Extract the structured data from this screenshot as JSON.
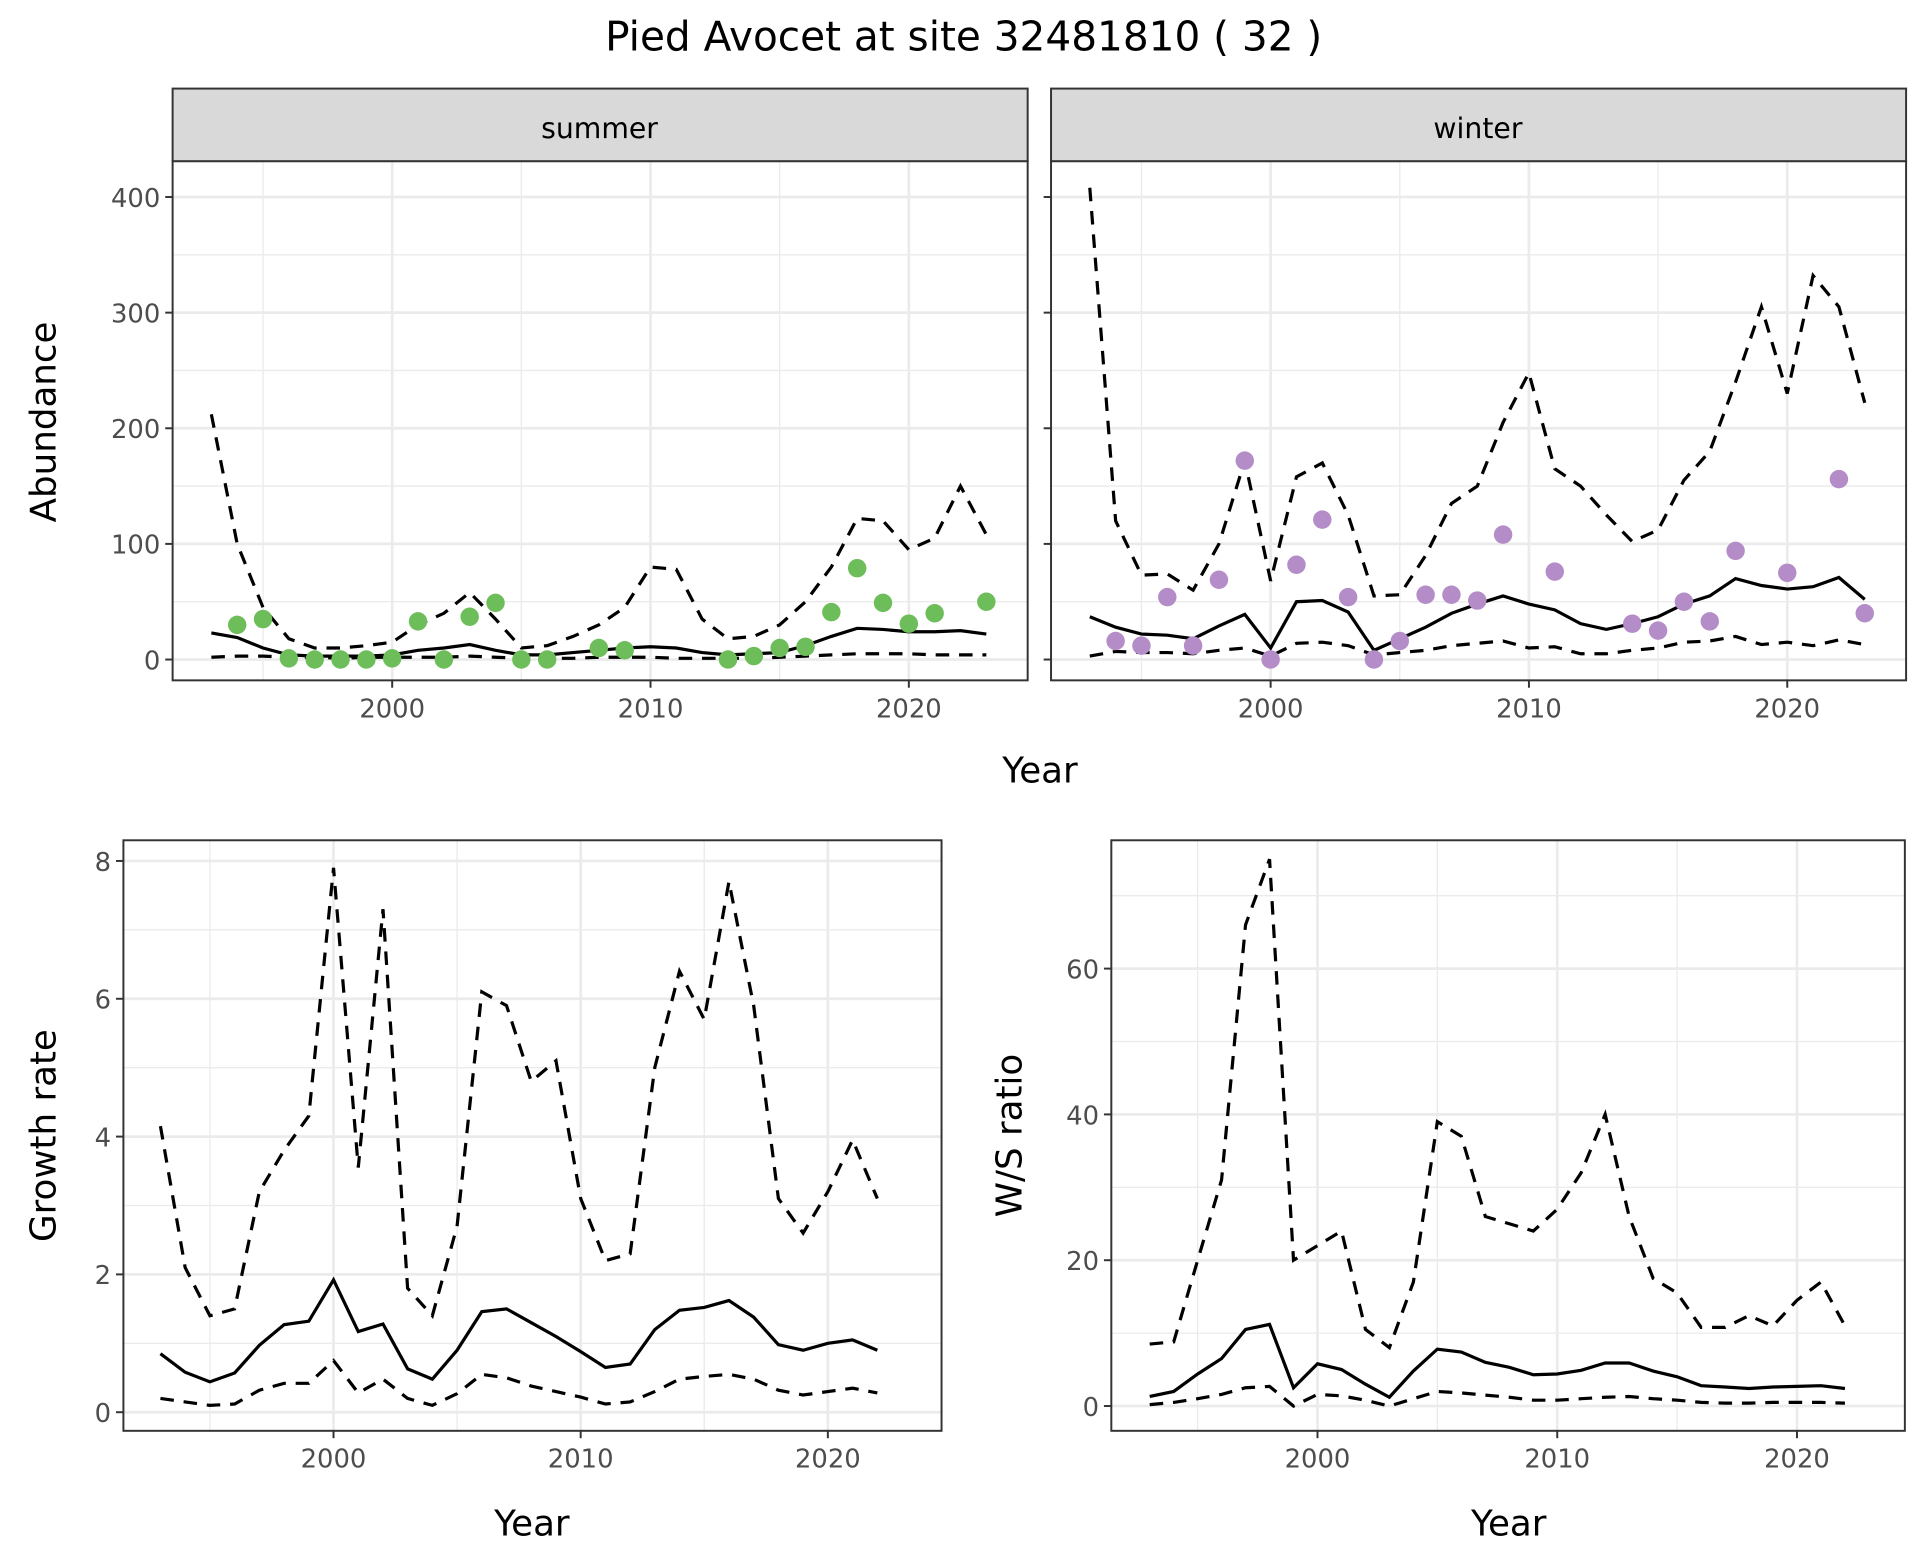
{
  "title": "Pied Avocet at site 32481810 ( 32 )",
  "colors": {
    "summer_points": "#6DBE5A",
    "winter_points": "#B48CC8",
    "lines": "#000000",
    "strip_fill": "#D9D9D9",
    "grid": "#EBEBEB"
  },
  "chart_data": [
    {
      "type": "line+scatter",
      "facet": "summer",
      "xlabel": "Year",
      "ylabel": "Abundance",
      "xlim": [
        1991.5,
        2024.6
      ],
      "ylim": [
        -18,
        431
      ],
      "xticks": [
        2000,
        2010,
        2020
      ],
      "yticks": [
        0,
        100,
        200,
        300,
        400
      ],
      "grid": true,
      "x": [
        1993,
        1994,
        1995,
        1996,
        1997,
        1998,
        1999,
        2000,
        2001,
        2002,
        2003,
        2004,
        2005,
        2006,
        2007,
        2008,
        2009,
        2010,
        2011,
        2012,
        2013,
        2014,
        2015,
        2016,
        2017,
        2018,
        2019,
        2020,
        2021,
        2022,
        2023
      ],
      "mean": [
        23,
        19,
        10,
        4,
        3,
        3,
        3,
        4,
        8,
        10,
        13,
        8,
        4,
        4,
        6,
        8,
        10,
        11,
        10,
        6,
        4,
        5,
        6,
        12,
        20,
        27,
        26,
        24,
        24,
        25,
        22
      ],
      "upper": [
        212,
        100,
        45,
        18,
        10,
        10,
        12,
        15,
        30,
        40,
        58,
        35,
        10,
        12,
        20,
        30,
        45,
        80,
        78,
        35,
        18,
        20,
        30,
        50,
        80,
        122,
        120,
        95,
        105,
        150,
        108
      ],
      "lower": [
        2,
        3,
        3,
        2,
        2,
        1,
        2,
        2,
        2,
        2,
        3,
        2,
        1,
        1,
        1,
        2,
        2,
        2,
        1,
        1,
        1,
        1,
        2,
        3,
        4,
        5,
        5,
        5,
        4,
        4,
        4
      ],
      "points": {
        "x": [
          1994,
          1995,
          1996,
          1997,
          1998,
          1999,
          2000,
          2001,
          2002,
          2003,
          2004,
          2005,
          2006,
          2008,
          2009,
          2013,
          2014,
          2015,
          2016,
          2017,
          2018,
          2019,
          2020,
          2021,
          2023
        ],
        "y": [
          30,
          35,
          1,
          0,
          0,
          0,
          1,
          33,
          0,
          37,
          49,
          0,
          0,
          10,
          8,
          0,
          3,
          10,
          11,
          41,
          79,
          49,
          31,
          40,
          50
        ]
      }
    },
    {
      "type": "line+scatter",
      "facet": "winter",
      "xlabel": "Year",
      "ylabel": "Abundance",
      "xlim": [
        1991.5,
        2024.6
      ],
      "ylim": [
        -18,
        431
      ],
      "xticks": [
        2000,
        2010,
        2020
      ],
      "yticks": [
        0,
        100,
        200,
        300,
        400
      ],
      "grid": true,
      "x": [
        1993,
        1994,
        1995,
        1996,
        1997,
        1998,
        1999,
        2000,
        2001,
        2002,
        2003,
        2004,
        2005,
        2006,
        2007,
        2008,
        2009,
        2010,
        2011,
        2012,
        2013,
        2014,
        2015,
        2016,
        2017,
        2018,
        2019,
        2020,
        2021,
        2022,
        2023
      ],
      "mean": [
        37,
        28,
        22,
        21,
        18,
        29,
        39,
        10,
        50,
        51,
        41,
        8,
        18,
        28,
        40,
        48,
        55,
        48,
        43,
        31,
        26,
        31,
        37,
        48,
        55,
        70,
        64,
        61,
        63,
        71,
        52
      ],
      "upper": [
        408,
        120,
        73,
        74,
        60,
        100,
        172,
        68,
        158,
        170,
        125,
        55,
        56,
        90,
        135,
        150,
        205,
        248,
        165,
        150,
        125,
        102,
        112,
        155,
        180,
        240,
        305,
        230,
        332,
        305,
        222
      ],
      "lower": [
        3,
        7,
        6,
        6,
        5,
        8,
        10,
        3,
        14,
        15,
        12,
        4,
        6,
        8,
        12,
        14,
        16,
        10,
        11,
        5,
        5,
        8,
        10,
        15,
        16,
        20,
        13,
        15,
        12,
        17,
        13
      ],
      "points": {
        "x": [
          1994,
          1995,
          1996,
          1997,
          1998,
          1999,
          2000,
          2001,
          2002,
          2003,
          2004,
          2005,
          2006,
          2007,
          2008,
          2009,
          2011,
          2014,
          2015,
          2016,
          2017,
          2018,
          2020,
          2022,
          2023
        ],
        "y": [
          16,
          12,
          54,
          12,
          69,
          172,
          0,
          82,
          121,
          54,
          0,
          16,
          56,
          56,
          51,
          108,
          76,
          31,
          25,
          50,
          33,
          94,
          75,
          156,
          40
        ]
      }
    },
    {
      "type": "line",
      "xlabel": "Year",
      "ylabel": "Growth rate",
      "xlim": [
        1991.5,
        2024.6
      ],
      "ylim": [
        -0.27,
        8.3
      ],
      "xticks": [
        2000,
        2010,
        2020
      ],
      "yticks": [
        0,
        2,
        4,
        6,
        8
      ],
      "grid": true,
      "x": [
        1993,
        1994,
        1995,
        1996,
        1997,
        1998,
        1999,
        2000,
        2001,
        2002,
        2003,
        2004,
        2005,
        2006,
        2007,
        2008,
        2009,
        2010,
        2011,
        2012,
        2013,
        2014,
        2015,
        2016,
        2017,
        2018,
        2019,
        2020,
        2021,
        2022
      ],
      "mean": [
        0.85,
        0.58,
        0.44,
        0.57,
        0.97,
        1.27,
        1.32,
        1.92,
        1.17,
        1.28,
        0.63,
        0.48,
        0.9,
        1.46,
        1.5,
        1.3,
        1.1,
        0.88,
        0.65,
        0.7,
        1.2,
        1.48,
        1.52,
        1.62,
        1.38,
        0.98,
        0.9,
        1.0,
        1.05,
        0.9
      ],
      "upper": [
        4.15,
        2.1,
        1.4,
        1.5,
        3.2,
        3.8,
        4.3,
        7.9,
        3.55,
        7.3,
        1.8,
        1.4,
        2.7,
        6.1,
        5.9,
        4.8,
        5.1,
        3.1,
        2.2,
        2.3,
        5.0,
        6.4,
        5.7,
        7.7,
        5.9,
        3.1,
        2.6,
        3.2,
        3.95,
        3.1
      ],
      "lower": [
        0.2,
        0.15,
        0.1,
        0.12,
        0.32,
        0.42,
        0.42,
        0.75,
        0.28,
        0.48,
        0.2,
        0.1,
        0.27,
        0.55,
        0.5,
        0.38,
        0.3,
        0.22,
        0.12,
        0.15,
        0.3,
        0.48,
        0.52,
        0.55,
        0.48,
        0.32,
        0.25,
        0.3,
        0.35,
        0.28
      ]
    },
    {
      "type": "line",
      "xlabel": "Year",
      "ylabel": "W/S ratio",
      "xlim": [
        1991.4,
        2024.5
      ],
      "ylim": [
        -3.4,
        77.6
      ],
      "xticks": [
        2000,
        2010,
        2020
      ],
      "yticks": [
        0,
        20,
        40,
        60
      ],
      "grid": true,
      "x": [
        1993,
        1994,
        1995,
        1996,
        1997,
        1998,
        1999,
        2000,
        2001,
        2002,
        2003,
        2004,
        2005,
        2006,
        2007,
        2008,
        2009,
        2010,
        2011,
        2012,
        2013,
        2014,
        2015,
        2016,
        2017,
        2018,
        2019,
        2020,
        2021,
        2022
      ],
      "mean": [
        1.3,
        2,
        4.4,
        6.5,
        10.5,
        11.2,
        2.5,
        5.8,
        5,
        3,
        1.2,
        4.8,
        7.8,
        7.4,
        6,
        5.3,
        4.3,
        4.4,
        4.9,
        5.9,
        5.9,
        4.8,
        4,
        2.8,
        2.6,
        2.4,
        2.6,
        2.7,
        2.8,
        2.4
      ],
      "upper": [
        8.5,
        8.8,
        20,
        31,
        66,
        75,
        20,
        22,
        24,
        10.5,
        8,
        17,
        39,
        37,
        26,
        25,
        24,
        27,
        32,
        40,
        26,
        17.5,
        15.5,
        10.8,
        10.8,
        12.4,
        11,
        14.5,
        17,
        11
      ],
      "lower": [
        0.2,
        0.5,
        1,
        1.6,
        2.5,
        2.7,
        0,
        1.6,
        1.4,
        0.8,
        0,
        1,
        2,
        1.8,
        1.5,
        1.2,
        0.8,
        0.8,
        1,
        1.2,
        1.3,
        1,
        0.8,
        0.5,
        0.4,
        0.4,
        0.5,
        0.5,
        0.5,
        0.4
      ]
    }
  ]
}
